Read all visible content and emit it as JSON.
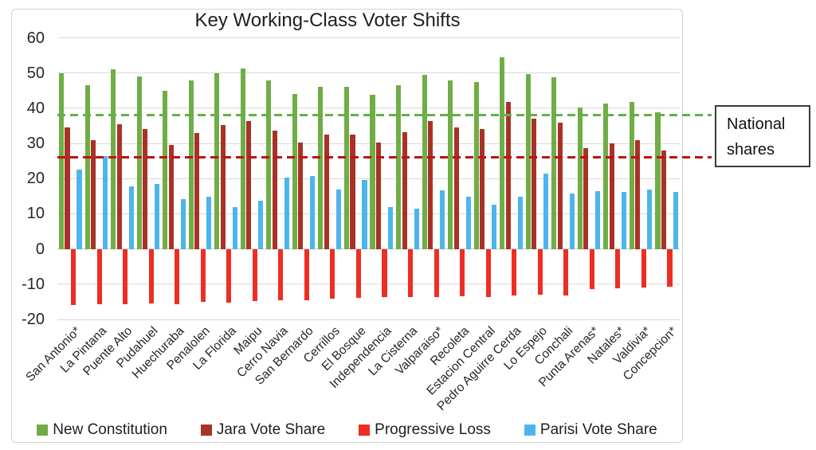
{
  "chart_data": {
    "type": "bar",
    "title": "Key Working-Class Voter Shifts",
    "categories": [
      "San Antonio*",
      "La Pintana",
      "Puente Alto",
      "Pudahuel",
      "Huechuraba",
      "Penalolen",
      "La Florida",
      "Maipu",
      "Cerro Navia",
      "San Bernardo",
      "Cerrillos",
      "El Bosque",
      "Independencia",
      "La Cisterna",
      "Valparaiso*",
      "Recoleta",
      "Estacion Central",
      "Pedro Aguirre Cerda",
      "Lo Espejo",
      "Conchali",
      "Punta Arenas*",
      "Natales*",
      "Valdivia*",
      "Concepcion*"
    ],
    "series": [
      {
        "name": "New Constitution",
        "color": "#70AD47",
        "values": [
          50,
          46.5,
          51,
          49,
          45,
          48,
          50,
          51.2,
          48,
          44,
          46,
          46,
          43.8,
          46.5,
          49.5,
          47.8,
          47.5,
          54.5,
          49.8,
          48.7,
          40.3,
          41.3,
          41.8,
          38.8
        ]
      },
      {
        "name": "Jara Vote Share",
        "color": "#A93226",
        "values": [
          34.5,
          31,
          35.5,
          34,
          29.5,
          33,
          35.2,
          36.3,
          33.7,
          30.2,
          32.5,
          32.4,
          30.3,
          33.2,
          36.3,
          34.6,
          34.2,
          41.8,
          37,
          36,
          28.6,
          30.1,
          30.9,
          27.9
        ]
      },
      {
        "name": "Progressive Loss",
        "color": "#ED2E24",
        "values": [
          -16,
          -15.8,
          -15.7,
          -15.5,
          -15.6,
          -15.1,
          -15.2,
          -14.8,
          -14.5,
          -14.6,
          -14.1,
          -14,
          -13.7,
          -13.6,
          -13.6,
          -13.5,
          -13.7,
          -13.1,
          -12.9,
          -13.1,
          -11.5,
          -11.2,
          -11,
          -10.8
        ]
      },
      {
        "name": "Parisi Vote Share",
        "color": "#4DB5EC",
        "values": [
          22.5,
          26.5,
          17.7,
          18.5,
          14.1,
          14.9,
          12,
          13.7,
          20.3,
          20.8,
          17,
          19.7,
          12,
          11.5,
          16.6,
          14.8,
          12.5,
          14.9,
          21.5,
          15.8,
          16.5,
          16.3,
          17,
          16.3
        ]
      }
    ],
    "reference_lines": [
      {
        "value": 38,
        "color": "#62B146",
        "style": "dashed"
      },
      {
        "value": 26,
        "color": "#BE1212",
        "style": "dashed"
      }
    ],
    "y_ticks": [
      60,
      50,
      40,
      30,
      20,
      10,
      0,
      -10,
      -20
    ],
    "ylim": [
      -20,
      60
    ],
    "grid": true,
    "legend_position": "bottom"
  },
  "annotation_box": {
    "line1": "National",
    "line2": "shares"
  }
}
